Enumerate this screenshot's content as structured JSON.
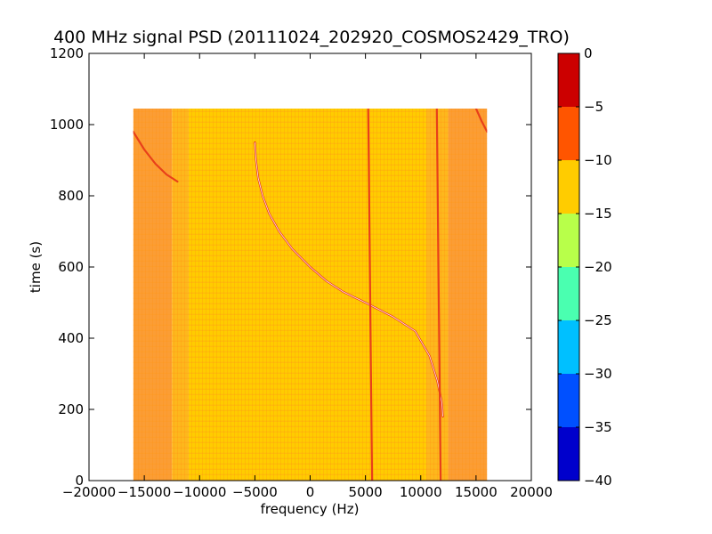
{
  "chart_data": {
    "type": "heatmap",
    "title": "400 MHz signal PSD (20111024_202920_COSMOS2429_TRO)",
    "xlabel": "frequency (Hz)",
    "ylabel": "time (s)",
    "xlim": [
      -20000,
      20000
    ],
    "ylim": [
      0,
      1200
    ],
    "x_ticks": [
      -20000,
      -15000,
      -10000,
      -5000,
      0,
      5000,
      10000,
      15000,
      20000
    ],
    "x_tick_labels": [
      "−20000",
      "−15000",
      "−10000",
      "−5000",
      "0",
      "5000",
      "10000",
      "15000",
      "20000"
    ],
    "y_ticks": [
      0,
      200,
      400,
      600,
      800,
      1000,
      1200
    ],
    "y_tick_labels": [
      "0",
      "200",
      "400",
      "600",
      "800",
      "1000",
      "1200"
    ],
    "data_extent": {
      "x": [
        -16000,
        16000
      ],
      "y": [
        0,
        1045
      ]
    },
    "grid": false,
    "colorbar": {
      "range": [
        -40,
        0
      ],
      "ticks": [
        0,
        -5,
        -10,
        -15,
        -20,
        -25,
        -30,
        -35,
        -40
      ],
      "tick_labels": [
        "0",
        "−5",
        "−10",
        "−15",
        "−20",
        "−25",
        "−30",
        "−35",
        "−40"
      ],
      "levels": [
        {
          "from": -5,
          "to": 0,
          "color": "#cc0000"
        },
        {
          "from": -10,
          "to": -5,
          "color": "#ff5500"
        },
        {
          "from": -15,
          "to": -10,
          "color": "#ffcc00"
        },
        {
          "from": -20,
          "to": -15,
          "color": "#b8ff4a"
        },
        {
          "from": -25,
          "to": -20,
          "color": "#4affb0"
        },
        {
          "from": -30,
          "to": -25,
          "color": "#00c0ff"
        },
        {
          "from": -35,
          "to": -30,
          "color": "#0050ff"
        },
        {
          "from": -40,
          "to": -35,
          "color": "#0000cc"
        }
      ]
    },
    "field_regions": [
      {
        "x": [
          -16000,
          -12500
        ],
        "level": -10,
        "color": "#fb9d35"
      },
      {
        "x": [
          -12500,
          -11000
        ],
        "level": -10,
        "color": "#fdb81c"
      },
      {
        "x": [
          -11000,
          10500
        ],
        "level": -15,
        "color": "#ffcc00"
      },
      {
        "x": [
          10500,
          12500
        ],
        "level": -10,
        "color": "#fdb81c"
      },
      {
        "x": [
          12500,
          16000
        ],
        "level": -10,
        "color": "#fb9d35"
      }
    ],
    "series": [
      {
        "name": "doppler-curve",
        "color": "#e8301a",
        "points": [
          [
            -5000,
            950
          ],
          [
            -4900,
            900
          ],
          [
            -4700,
            850
          ],
          [
            -4300,
            800
          ],
          [
            -3700,
            750
          ],
          [
            -2800,
            700
          ],
          [
            -1600,
            650
          ],
          [
            0,
            600
          ],
          [
            1500,
            560
          ],
          [
            3000,
            530
          ],
          [
            5000,
            500
          ],
          [
            7500,
            460
          ],
          [
            9500,
            420
          ],
          [
            10800,
            350
          ],
          [
            11500,
            280
          ],
          [
            11900,
            220
          ],
          [
            12000,
            180
          ]
        ]
      },
      {
        "name": "carrier-line-left",
        "color": "#e8401a",
        "points": [
          [
            5600,
            0
          ],
          [
            5500,
            300
          ],
          [
            5400,
            600
          ],
          [
            5300,
            900
          ],
          [
            5250,
            1045
          ]
        ]
      },
      {
        "name": "carrier-line-right",
        "color": "#e8401a",
        "points": [
          [
            11800,
            0
          ],
          [
            11700,
            300
          ],
          [
            11600,
            600
          ],
          [
            11500,
            900
          ],
          [
            11450,
            1045
          ]
        ]
      },
      {
        "name": "edge-curve-left",
        "color": "#e8401a",
        "points": [
          [
            -16000,
            980
          ],
          [
            -15000,
            930
          ],
          [
            -14000,
            890
          ],
          [
            -13000,
            860
          ],
          [
            -12000,
            840
          ]
        ]
      },
      {
        "name": "edge-curve-right",
        "color": "#e8401a",
        "points": [
          [
            15000,
            1045
          ],
          [
            15500,
            1010
          ],
          [
            16000,
            980
          ]
        ]
      }
    ]
  }
}
